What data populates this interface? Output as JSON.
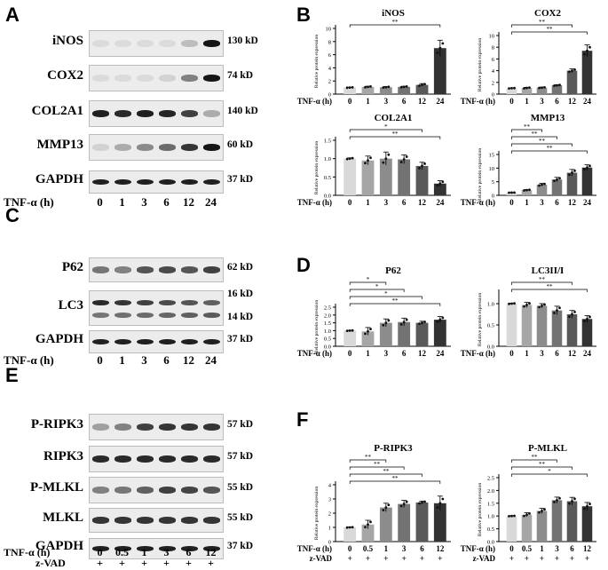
{
  "panels": {
    "A": "A",
    "B": "B",
    "C": "C",
    "D": "D",
    "E": "E",
    "F": "F"
  },
  "axis_label": "TNF-α (h)",
  "zvad_label": "z-VAD",
  "plus_sign": "+",
  "y_axis_label": "Relative protein expression",
  "blot_A": {
    "lanes": [
      "0",
      "1",
      "3",
      "6",
      "12",
      "24"
    ],
    "rows": [
      {
        "label": "iNOS",
        "kd": "130 kD",
        "intensity": [
          0.05,
          0.07,
          0.06,
          0.08,
          0.22,
          1.0
        ]
      },
      {
        "label": "COX2",
        "kd": "74 kD",
        "intensity": [
          0.05,
          0.05,
          0.08,
          0.12,
          0.5,
          1.0
        ]
      },
      {
        "label": "COL2A1",
        "kd": "140 kD",
        "intensity": [
          0.95,
          0.9,
          0.95,
          0.92,
          0.8,
          0.3
        ]
      },
      {
        "label": "MMP13",
        "kd": "60 kD",
        "intensity": [
          0.12,
          0.3,
          0.45,
          0.6,
          0.85,
          1.0
        ]
      },
      {
        "label": "GAPDH",
        "kd": "37 kD",
        "intensity": [
          0.95,
          0.95,
          0.95,
          0.95,
          0.95,
          0.95
        ]
      }
    ]
  },
  "blot_C": {
    "lanes": [
      "0",
      "1",
      "3",
      "6",
      "12",
      "24"
    ],
    "rows": [
      {
        "label": "P62",
        "kd": "62 kD",
        "intensity": [
          0.55,
          0.5,
          0.7,
          0.75,
          0.7,
          0.8
        ]
      },
      {
        "label": "LC3",
        "kd": "16 kD",
        "kd2": "14 kD",
        "intensity": [
          0.9,
          0.85,
          0.8,
          0.75,
          0.7,
          0.65
        ]
      },
      {
        "label": "GAPDH",
        "kd": "37 kD",
        "intensity": [
          0.95,
          0.95,
          0.95,
          0.95,
          0.95,
          0.95
        ]
      }
    ]
  },
  "blot_E": {
    "lanes": [
      "0",
      "0.5",
      "1",
      "3",
      "6",
      "12"
    ],
    "rows": [
      {
        "label": "P-RIPK3",
        "kd": "57 kD",
        "intensity": [
          0.35,
          0.5,
          0.8,
          0.85,
          0.85,
          0.85
        ]
      },
      {
        "label": "RIPK3",
        "kd": "57 kD",
        "intensity": [
          0.9,
          0.9,
          0.9,
          0.9,
          0.9,
          0.9
        ]
      },
      {
        "label": "P-MLKL",
        "kd": "55 kD",
        "intensity": [
          0.5,
          0.55,
          0.65,
          0.8,
          0.78,
          0.7
        ]
      },
      {
        "label": "MLKL",
        "kd": "55 kD",
        "intensity": [
          0.85,
          0.85,
          0.85,
          0.85,
          0.85,
          0.85
        ]
      },
      {
        "label": "GAPDH",
        "kd": "37 kD",
        "intensity": [
          0.95,
          0.95,
          0.95,
          0.95,
          0.95,
          0.95
        ]
      }
    ]
  },
  "chart_data": [
    {
      "type": "bar",
      "title": "iNOS",
      "categories": [
        "0",
        "1",
        "3",
        "6",
        "12",
        "24"
      ],
      "values": [
        1.0,
        1.1,
        1.05,
        1.1,
        1.4,
        7.0
      ],
      "errors": [
        0.05,
        0.1,
        0.1,
        0.1,
        0.2,
        1.2
      ],
      "ylabel": "Relative protein expression",
      "xlabel": "TNF-α (h)",
      "ylim": [
        0,
        10
      ],
      "yticks": [
        "0",
        "2",
        "4",
        "6",
        "8",
        "10"
      ],
      "sig": [
        {
          "from": 0,
          "to": 5,
          "label": "**"
        }
      ]
    },
    {
      "type": "bar",
      "title": "COX2",
      "categories": [
        "0",
        "1",
        "3",
        "6",
        "12",
        "24"
      ],
      "values": [
        1.0,
        1.05,
        1.1,
        1.5,
        4.0,
        7.4
      ],
      "errors": [
        0.05,
        0.1,
        0.1,
        0.1,
        0.3,
        1.0
      ],
      "ylabel": "Relative protein expression",
      "xlabel": "TNF-α (h)",
      "ylim": [
        0,
        10
      ],
      "yticks": [
        "0",
        "2",
        "4",
        "6",
        "8",
        "10"
      ],
      "sig": [
        {
          "from": 0,
          "to": 4,
          "label": "**"
        },
        {
          "from": 0,
          "to": 5,
          "label": "**"
        }
      ]
    },
    {
      "type": "bar",
      "title": "COL2A1",
      "categories": [
        "0",
        "1",
        "3",
        "6",
        "12",
        "24"
      ],
      "values": [
        1.0,
        0.95,
        1.0,
        0.98,
        0.8,
        0.32
      ],
      "errors": [
        0.02,
        0.12,
        0.18,
        0.12,
        0.1,
        0.08
      ],
      "ylabel": "Relative protein expression",
      "xlabel": "TNF-α (h)",
      "ylim": [
        0,
        1.5
      ],
      "yticks": [
        "0.0",
        "0.5",
        "1.0",
        "1.5"
      ],
      "sig": [
        {
          "from": 0,
          "to": 4,
          "label": "*"
        },
        {
          "from": 0,
          "to": 5,
          "label": "**"
        }
      ]
    },
    {
      "type": "bar",
      "title": "MMP13",
      "categories": [
        "0",
        "1",
        "3",
        "6",
        "12",
        "24"
      ],
      "values": [
        1.0,
        1.9,
        3.9,
        5.8,
        8.3,
        10.2
      ],
      "errors": [
        0.05,
        0.2,
        0.5,
        0.8,
        1.2,
        1.0
      ],
      "ylabel": "Relative protein expression",
      "xlabel": "TNF-α (h)",
      "ylim": [
        0,
        15
      ],
      "yticks": [
        "0",
        "5",
        "10",
        "15"
      ],
      "sig": [
        {
          "from": 0,
          "to": 2,
          "label": "**"
        },
        {
          "from": 0,
          "to": 3,
          "label": "**"
        },
        {
          "from": 0,
          "to": 4,
          "label": "**"
        },
        {
          "from": 0,
          "to": 5,
          "label": "**"
        }
      ]
    },
    {
      "type": "bar",
      "title": "P62",
      "categories": [
        "0",
        "1",
        "3",
        "6",
        "12",
        "24"
      ],
      "values": [
        1.0,
        0.95,
        1.5,
        1.55,
        1.5,
        1.7
      ],
      "errors": [
        0.02,
        0.25,
        0.25,
        0.25,
        0.1,
        0.2
      ],
      "ylabel": "Relative protein expression",
      "xlabel": "TNF-α (h)",
      "ylim": [
        0,
        2.5
      ],
      "yticks": [
        "0.0",
        "0.5",
        "1.0",
        "1.5",
        "2.0",
        "2.5"
      ],
      "sig": [
        {
          "from": 0,
          "to": 2,
          "label": "*"
        },
        {
          "from": 0,
          "to": 3,
          "label": "*"
        },
        {
          "from": 0,
          "to": 4,
          "label": "*"
        },
        {
          "from": 0,
          "to": 5,
          "label": "**"
        }
      ]
    },
    {
      "type": "bar",
      "title": "LC3II/I",
      "categories": [
        "0",
        "1",
        "3",
        "6",
        "12",
        "24"
      ],
      "values": [
        1.0,
        0.97,
        0.95,
        0.84,
        0.75,
        0.64
      ],
      "errors": [
        0.01,
        0.06,
        0.05,
        0.1,
        0.09,
        0.08
      ],
      "ylabel": "Relative protein expression",
      "xlabel": "TNF-α (h)",
      "ylim": [
        0,
        1.25
      ],
      "yticks": [
        "0.0",
        "0.5",
        "1.0"
      ],
      "sig": [
        {
          "from": 0,
          "to": 4,
          "label": "**"
        },
        {
          "from": 0,
          "to": 5,
          "label": "**"
        }
      ]
    },
    {
      "type": "bar",
      "title": "P-RIPK3",
      "categories": [
        "0",
        "0.5",
        "1",
        "3",
        "6",
        "12"
      ],
      "values": [
        1.0,
        1.2,
        2.4,
        2.65,
        2.75,
        2.7
      ],
      "errors": [
        0.02,
        0.3,
        0.3,
        0.25,
        0.1,
        0.5
      ],
      "ylabel": "Relative protein expression",
      "xlabel": "TNF-α (h)",
      "ylim": [
        0,
        4
      ],
      "yticks": [
        "0",
        "1",
        "2",
        "3",
        "4"
      ],
      "sig": [
        {
          "from": 0,
          "to": 2,
          "label": "**"
        },
        {
          "from": 0,
          "to": 3,
          "label": "**"
        },
        {
          "from": 0,
          "to": 4,
          "label": "**"
        },
        {
          "from": 0,
          "to": 5,
          "label": "**"
        }
      ]
    },
    {
      "type": "bar",
      "title": "P-MLKL",
      "categories": [
        "0",
        "0.5",
        "1",
        "3",
        "6",
        "12"
      ],
      "values": [
        1.0,
        1.05,
        1.2,
        1.62,
        1.58,
        1.38
      ],
      "errors": [
        0.01,
        0.08,
        0.1,
        0.12,
        0.15,
        0.15
      ],
      "ylabel": "Relative protein expression",
      "xlabel": "TNF-α (h)",
      "ylim": [
        0,
        2.5
      ],
      "yticks": [
        "0.0",
        "0.5",
        "1.0",
        "1.5",
        "2.0",
        "2.5"
      ],
      "sig": [
        {
          "from": 0,
          "to": 3,
          "label": "**"
        },
        {
          "from": 0,
          "to": 4,
          "label": "**"
        },
        {
          "from": 0,
          "to": 5,
          "label": "*"
        }
      ]
    }
  ],
  "colors": {
    "bars": [
      "#d9d9d9",
      "#a6a6a6",
      "#8c8c8c",
      "#737373",
      "#595959",
      "#333333"
    ]
  }
}
